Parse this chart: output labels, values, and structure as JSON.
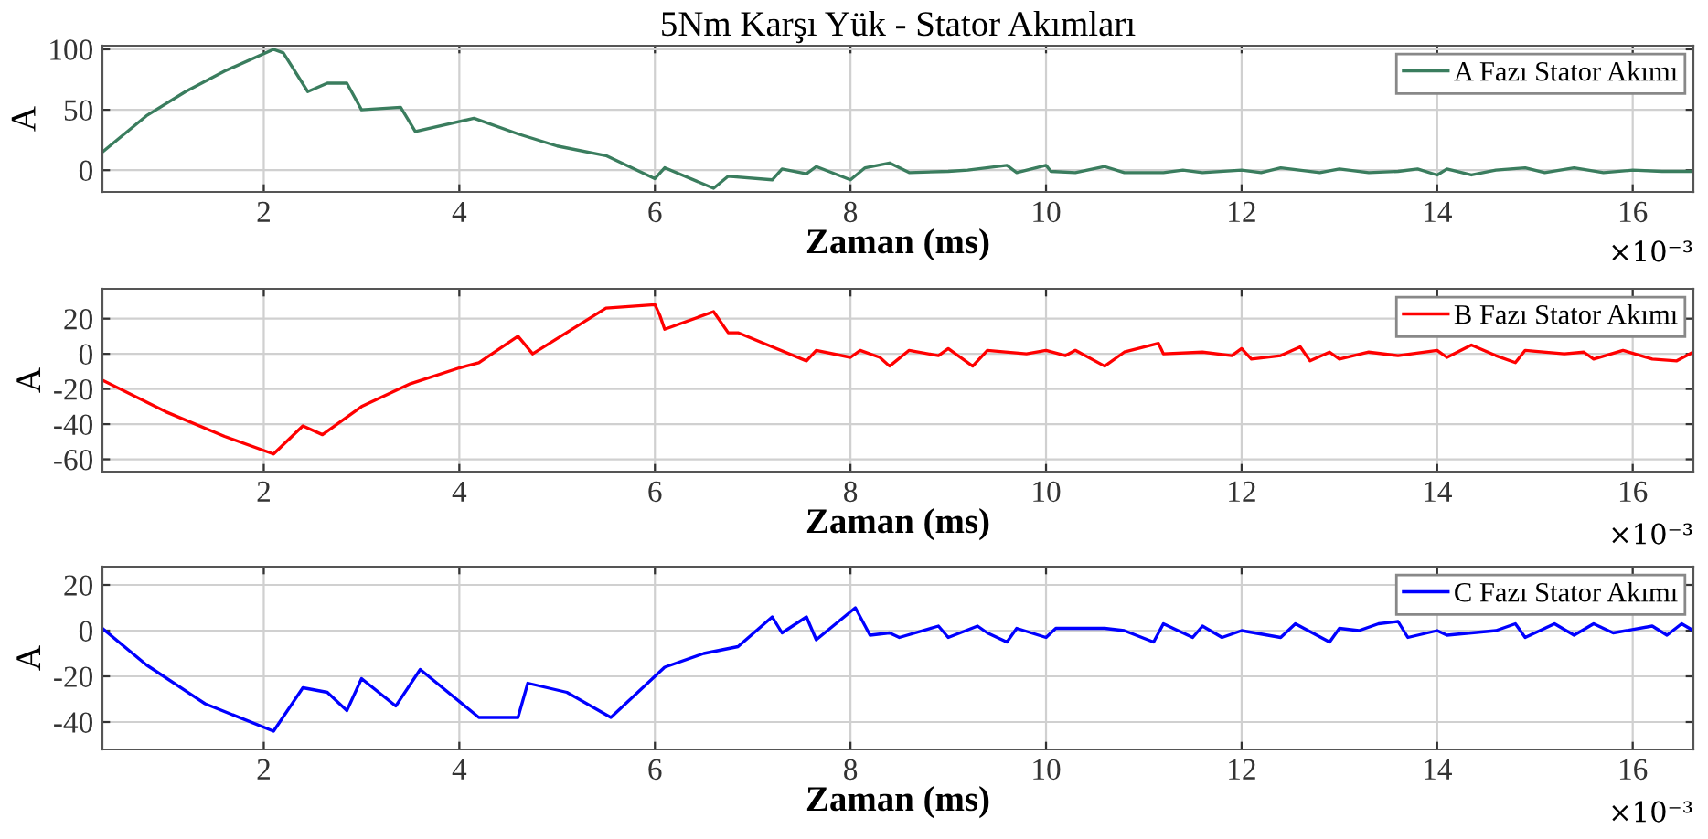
{
  "chart_data": [
    {
      "type": "line",
      "title": "5Nm Karşı Yük - Stator Akımları",
      "xlabel": "Zaman (ms)",
      "ylabel": "A",
      "annotations": [
        "×10⁻³"
      ],
      "legend": "top right",
      "grid": true,
      "xlim": [
        0.35,
        16.62
      ],
      "xticks": [
        2,
        4,
        6,
        8,
        10,
        12,
        14,
        16
      ],
      "ylim": [
        -18,
        103
      ],
      "yticks": [
        0,
        50,
        100
      ],
      "series": [
        {
          "name": "A Fazı Stator Akımı",
          "color": "#3a7d5e",
          "x": [
            0.35,
            0.8,
            1.2,
            1.6,
            2.1,
            2.2,
            2.45,
            2.65,
            2.85,
            3.0,
            3.4,
            3.55,
            4.15,
            4.6,
            5.0,
            5.5,
            6.0,
            6.1,
            6.6,
            6.75,
            7.2,
            7.3,
            7.55,
            7.65,
            8.0,
            8.15,
            8.4,
            8.6,
            9.0,
            9.2,
            9.6,
            9.7,
            10.0,
            10.05,
            10.3,
            10.6,
            10.8,
            11.2,
            11.4,
            11.6,
            12.0,
            12.2,
            12.4,
            12.8,
            13.0,
            13.3,
            13.6,
            13.8,
            14.0,
            14.1,
            14.35,
            14.6,
            14.9,
            15.1,
            15.4,
            15.7,
            16.0,
            16.3,
            16.62
          ],
          "values": [
            15,
            45,
            65,
            82,
            100,
            97,
            65,
            72,
            72,
            50,
            52,
            32,
            43,
            30,
            20,
            12,
            -7,
            2,
            -15,
            -5,
            -8,
            1,
            -3,
            3,
            -8,
            2,
            6,
            -2,
            -1,
            0,
            4,
            -2,
            4,
            -1,
            -2,
            3,
            -2,
            -2,
            0,
            -2,
            0,
            -2,
            2,
            -2,
            1,
            -2,
            -1,
            1,
            -4,
            1,
            -4,
            0,
            2,
            -2,
            2,
            -2,
            0,
            -1,
            -1
          ]
        }
      ]
    },
    {
      "type": "line",
      "xlabel": "Zaman (ms)",
      "ylabel": "A",
      "annotations": [
        "×10⁻³"
      ],
      "legend": "top right",
      "grid": true,
      "xlim": [
        0.35,
        16.62
      ],
      "xticks": [
        2,
        4,
        6,
        8,
        10,
        12,
        14,
        16
      ],
      "ylim": [
        -67,
        37
      ],
      "yticks": [
        -60,
        -40,
        -20,
        0,
        20
      ],
      "series": [
        {
          "name": "B Fazı Stator Akımı",
          "color": "#ff0000",
          "x": [
            0.35,
            1.0,
            1.6,
            2.1,
            2.4,
            2.6,
            3.0,
            3.5,
            4.0,
            4.2,
            4.6,
            4.75,
            5.5,
            6.0,
            6.05,
            6.1,
            6.6,
            6.75,
            6.85,
            7.2,
            7.55,
            7.65,
            8.0,
            8.1,
            8.3,
            8.4,
            8.6,
            8.9,
            9.0,
            9.25,
            9.4,
            9.8,
            10.0,
            10.2,
            10.3,
            10.6,
            10.8,
            11.15,
            11.2,
            11.6,
            11.9,
            12.0,
            12.1,
            12.4,
            12.6,
            12.7,
            12.9,
            13.0,
            13.3,
            13.6,
            14.0,
            14.1,
            14.35,
            14.6,
            14.8,
            14.9,
            15.3,
            15.5,
            15.6,
            15.9,
            16.2,
            16.45,
            16.62
          ],
          "values": [
            -15,
            -33,
            -47,
            -57,
            -41,
            -46,
            -30,
            -17,
            -8,
            -5,
            10,
            0,
            26,
            28,
            22,
            14,
            24,
            12,
            12,
            4,
            -4,
            2,
            -2,
            2,
            -2,
            -7,
            2,
            -1,
            3,
            -7,
            2,
            0,
            2,
            -1,
            2,
            -7,
            1,
            6,
            0,
            1,
            -1,
            3,
            -3,
            -1,
            4,
            -4,
            1,
            -3,
            1,
            -1,
            2,
            -2,
            5,
            -1,
            -5,
            2,
            0,
            1,
            -3,
            2,
            -3,
            -4,
            1
          ]
        }
      ]
    },
    {
      "type": "line",
      "xlabel": "Zaman (ms)",
      "ylabel": "A",
      "annotations": [
        "×10⁻³"
      ],
      "legend": "top right",
      "grid": true,
      "xlim": [
        0.35,
        16.62
      ],
      "xticks": [
        2,
        4,
        6,
        8,
        10,
        12,
        14,
        16
      ],
      "ylim": [
        -52,
        28
      ],
      "yticks": [
        -40,
        -20,
        0,
        20
      ],
      "series": [
        {
          "name": "C Fazı Stator Akımı",
          "color": "#0000ff",
          "x": [
            0.35,
            0.8,
            1.4,
            2.1,
            2.4,
            2.65,
            2.85,
            3.0,
            3.35,
            3.6,
            4.2,
            4.6,
            4.7,
            5.1,
            5.55,
            6.1,
            6.5,
            6.85,
            7.2,
            7.3,
            7.55,
            7.65,
            8.05,
            8.2,
            8.4,
            8.5,
            8.9,
            9.0,
            9.3,
            9.4,
            9.6,
            9.7,
            10.0,
            10.1,
            10.6,
            10.8,
            11.1,
            11.2,
            11.5,
            11.6,
            11.8,
            12.0,
            12.4,
            12.55,
            12.9,
            13.0,
            13.2,
            13.4,
            13.6,
            13.7,
            14.0,
            14.1,
            14.6,
            14.8,
            14.9,
            15.2,
            15.4,
            15.6,
            15.8,
            16.2,
            16.35,
            16.5,
            16.62
          ],
          "values": [
            1,
            -15,
            -32,
            -44,
            -25,
            -27,
            -35,
            -21,
            -33,
            -17,
            -38,
            -38,
            -23,
            -27,
            -38,
            -16,
            -10,
            -7,
            6,
            -1,
            6,
            -4,
            10,
            -2,
            -1,
            -3,
            2,
            -3,
            2,
            -1,
            -5,
            1,
            -3,
            1,
            1,
            0,
            -5,
            3,
            -3,
            2,
            -3,
            0,
            -3,
            3,
            -5,
            1,
            0,
            3,
            4,
            -3,
            0,
            -2,
            0,
            3,
            -3,
            3,
            -2,
            3,
            -1,
            2,
            -2,
            3,
            0
          ]
        }
      ]
    }
  ]
}
